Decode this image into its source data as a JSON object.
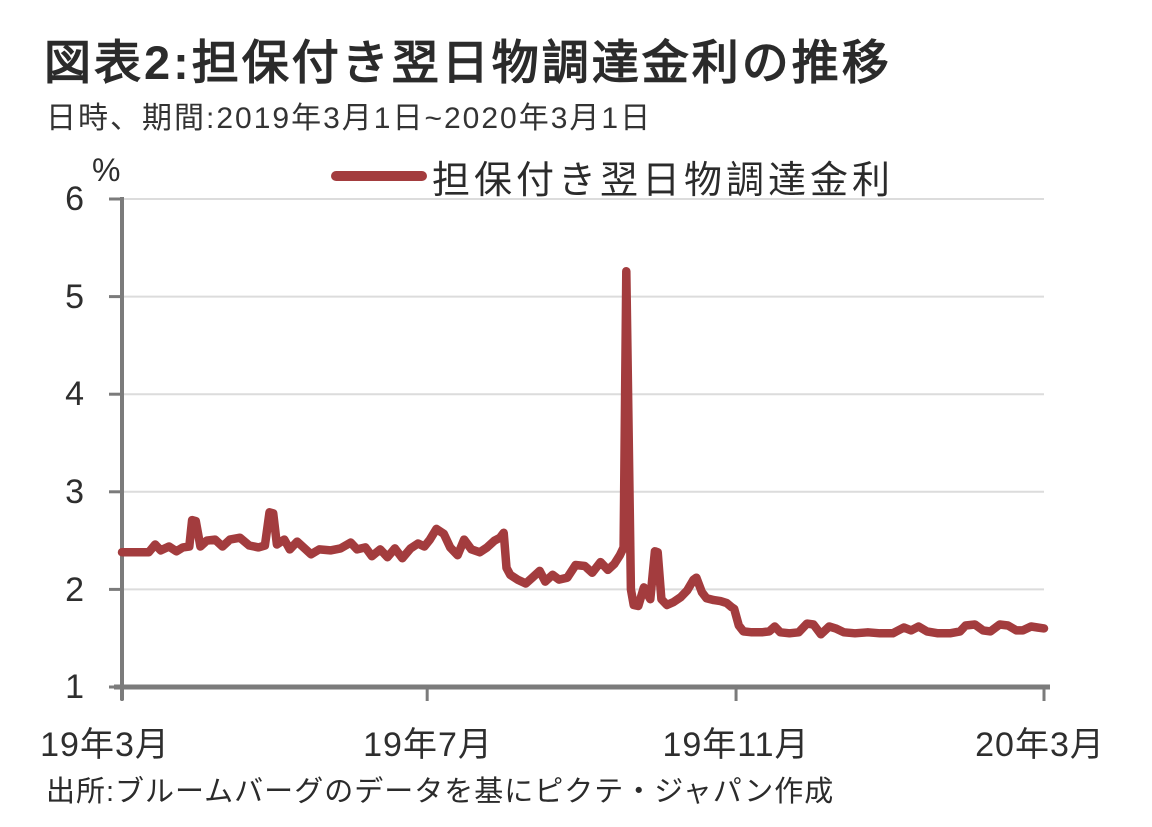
{
  "figure": {
    "title": "図表2:担保付き翌日物調達金利の推移",
    "subtitle": "日時、期間:2019年3月1日~2020年3月1日",
    "source": "出所:ブルームバーグのデータを基にピクテ・ジャパン作成",
    "unit_label": "%"
  },
  "legend": {
    "label": "担保付き翌日物調達金利"
  },
  "colors": {
    "line": "#a33c3e",
    "axis": "#7b7b7b",
    "gridline": "#dcdcdc",
    "text": "#2b2b2b",
    "background": "#ffffff"
  },
  "chart_data": {
    "type": "line",
    "title": "担保付き翌日物調達金利の推移",
    "xlabel": "",
    "ylabel": "%",
    "ylim": [
      1,
      6
    ],
    "yticks": [
      1,
      2,
      3,
      4,
      5,
      6
    ],
    "xtick_labels": [
      "19年3月",
      "19年7月",
      "19年11月",
      "20年3月"
    ],
    "xtick_positions": [
      0,
      0.331,
      0.666,
      1
    ],
    "grid": "horizontal",
    "legend_position": "top-center",
    "x_axis_note": "x encoded as fraction of axis span, 0 = 2019年3月1日, 1 = 2020年3月1日",
    "series": [
      {
        "name": "担保付き翌日物調達金利",
        "color": "#a33c3e",
        "y_unit": "percent",
        "points": [
          [
            0.0,
            2.38
          ],
          [
            0.029,
            2.38
          ],
          [
            0.036,
            2.46
          ],
          [
            0.042,
            2.4
          ],
          [
            0.051,
            2.44
          ],
          [
            0.059,
            2.39
          ],
          [
            0.066,
            2.43
          ],
          [
            0.073,
            2.44
          ],
          [
            0.076,
            2.71
          ],
          [
            0.08,
            2.7
          ],
          [
            0.085,
            2.44
          ],
          [
            0.092,
            2.5
          ],
          [
            0.101,
            2.51
          ],
          [
            0.109,
            2.44
          ],
          [
            0.117,
            2.51
          ],
          [
            0.128,
            2.53
          ],
          [
            0.138,
            2.45
          ],
          [
            0.148,
            2.43
          ],
          [
            0.155,
            2.45
          ],
          [
            0.16,
            2.79
          ],
          [
            0.164,
            2.78
          ],
          [
            0.168,
            2.46
          ],
          [
            0.176,
            2.51
          ],
          [
            0.182,
            2.41
          ],
          [
            0.19,
            2.49
          ],
          [
            0.198,
            2.42
          ],
          [
            0.205,
            2.36
          ],
          [
            0.214,
            2.41
          ],
          [
            0.226,
            2.4
          ],
          [
            0.237,
            2.42
          ],
          [
            0.248,
            2.48
          ],
          [
            0.255,
            2.41
          ],
          [
            0.264,
            2.43
          ],
          [
            0.271,
            2.34
          ],
          [
            0.28,
            2.41
          ],
          [
            0.288,
            2.33
          ],
          [
            0.296,
            2.42
          ],
          [
            0.304,
            2.32
          ],
          [
            0.313,
            2.42
          ],
          [
            0.321,
            2.47
          ],
          [
            0.328,
            2.44
          ],
          [
            0.334,
            2.51
          ],
          [
            0.341,
            2.62
          ],
          [
            0.349,
            2.57
          ],
          [
            0.356,
            2.43
          ],
          [
            0.364,
            2.35
          ],
          [
            0.371,
            2.51
          ],
          [
            0.379,
            2.41
          ],
          [
            0.388,
            2.38
          ],
          [
            0.396,
            2.43
          ],
          [
            0.404,
            2.5
          ],
          [
            0.41,
            2.53
          ],
          [
            0.414,
            2.58
          ],
          [
            0.417,
            2.22
          ],
          [
            0.421,
            2.15
          ],
          [
            0.429,
            2.1
          ],
          [
            0.438,
            2.06
          ],
          [
            0.445,
            2.12
          ],
          [
            0.453,
            2.19
          ],
          [
            0.459,
            2.08
          ],
          [
            0.467,
            2.15
          ],
          [
            0.474,
            2.1
          ],
          [
            0.483,
            2.12
          ],
          [
            0.492,
            2.25
          ],
          [
            0.502,
            2.24
          ],
          [
            0.51,
            2.17
          ],
          [
            0.519,
            2.28
          ],
          [
            0.527,
            2.2
          ],
          [
            0.534,
            2.26
          ],
          [
            0.54,
            2.35
          ],
          [
            0.544,
            2.43
          ],
          [
            0.547,
            5.26
          ],
          [
            0.552,
            2.0
          ],
          [
            0.555,
            1.84
          ],
          [
            0.56,
            1.83
          ],
          [
            0.566,
            2.02
          ],
          [
            0.57,
            1.95
          ],
          [
            0.573,
            1.9
          ],
          [
            0.578,
            2.39
          ],
          [
            0.581,
            2.38
          ],
          [
            0.585,
            1.9
          ],
          [
            0.591,
            1.84
          ],
          [
            0.598,
            1.87
          ],
          [
            0.606,
            1.92
          ],
          [
            0.613,
            1.99
          ],
          [
            0.62,
            2.1
          ],
          [
            0.623,
            2.12
          ],
          [
            0.629,
            1.97
          ],
          [
            0.634,
            1.91
          ],
          [
            0.642,
            1.89
          ],
          [
            0.649,
            1.88
          ],
          [
            0.656,
            1.86
          ],
          [
            0.661,
            1.82
          ],
          [
            0.664,
            1.8
          ],
          [
            0.669,
            1.63
          ],
          [
            0.674,
            1.57
          ],
          [
            0.683,
            1.56
          ],
          [
            0.694,
            1.56
          ],
          [
            0.702,
            1.57
          ],
          [
            0.708,
            1.62
          ],
          [
            0.714,
            1.56
          ],
          [
            0.724,
            1.55
          ],
          [
            0.734,
            1.56
          ],
          [
            0.743,
            1.65
          ],
          [
            0.75,
            1.64
          ],
          [
            0.758,
            1.54
          ],
          [
            0.767,
            1.62
          ],
          [
            0.774,
            1.6
          ],
          [
            0.783,
            1.56
          ],
          [
            0.795,
            1.55
          ],
          [
            0.809,
            1.56
          ],
          [
            0.822,
            1.55
          ],
          [
            0.836,
            1.55
          ],
          [
            0.848,
            1.61
          ],
          [
            0.856,
            1.58
          ],
          [
            0.864,
            1.62
          ],
          [
            0.873,
            1.57
          ],
          [
            0.885,
            1.55
          ],
          [
            0.898,
            1.55
          ],
          [
            0.909,
            1.57
          ],
          [
            0.915,
            1.63
          ],
          [
            0.925,
            1.64
          ],
          [
            0.934,
            1.58
          ],
          [
            0.942,
            1.57
          ],
          [
            0.952,
            1.64
          ],
          [
            0.961,
            1.63
          ],
          [
            0.97,
            1.58
          ],
          [
            0.977,
            1.58
          ],
          [
            0.986,
            1.62
          ],
          [
            0.993,
            1.61
          ],
          [
            1.0,
            1.6
          ]
        ]
      }
    ]
  }
}
